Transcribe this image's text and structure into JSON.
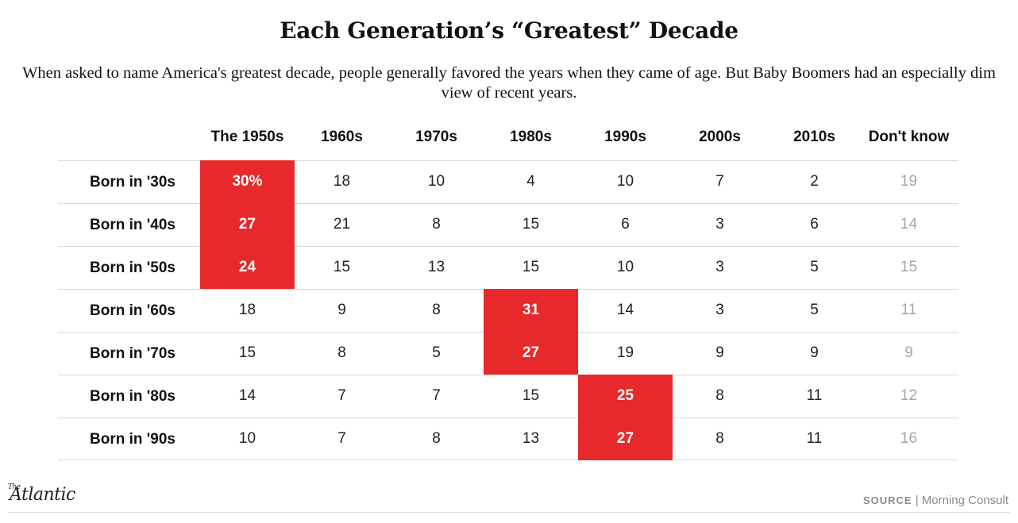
{
  "title": "Each Generation’s “Greatest” Decade",
  "subtitle": "When asked to name America's greatest decade, people generally favored the years when they came of age. But Baby Boomers had an especially dim view of recent years.",
  "source_label": "SOURCE",
  "source_separator": "|",
  "source_name": "Morning Consult",
  "logo": {
    "the": "The",
    "name": "Atlantic"
  },
  "colors": {
    "highlight": "#e8292b",
    "dont_know_text": "#a6a6a6",
    "rule": "#d9d9d9"
  },
  "chart_data": {
    "type": "table",
    "title": "Each Generation’s “Greatest” Decade",
    "columns": [
      "The 1950s",
      "1960s",
      "1970s",
      "1980s",
      "1990s",
      "2000s",
      "2010s",
      "Don't know"
    ],
    "rows": [
      {
        "label": "Born in '30s",
        "values": [
          "30%",
          "18",
          "10",
          "4",
          "10",
          "7",
          "2",
          "19"
        ],
        "highlight": 0
      },
      {
        "label": "Born in '40s",
        "values": [
          "27",
          "21",
          "8",
          "15",
          "6",
          "3",
          "6",
          "14"
        ],
        "highlight": 0
      },
      {
        "label": "Born in '50s",
        "values": [
          "24",
          "15",
          "13",
          "15",
          "10",
          "3",
          "5",
          "15"
        ],
        "highlight": 0
      },
      {
        "label": "Born in '60s",
        "values": [
          "18",
          "9",
          "8",
          "31",
          "14",
          "3",
          "5",
          "11"
        ],
        "highlight": 3
      },
      {
        "label": "Born in '70s",
        "values": [
          "15",
          "8",
          "5",
          "27",
          "19",
          "9",
          "9",
          "9"
        ],
        "highlight": 3
      },
      {
        "label": "Born in '80s",
        "values": [
          "14",
          "7",
          "7",
          "15",
          "25",
          "8",
          "11",
          "12"
        ],
        "highlight": 4
      },
      {
        "label": "Born in '90s",
        "values": [
          "10",
          "7",
          "8",
          "13",
          "27",
          "8",
          "11",
          "16"
        ],
        "highlight": 4
      }
    ]
  }
}
